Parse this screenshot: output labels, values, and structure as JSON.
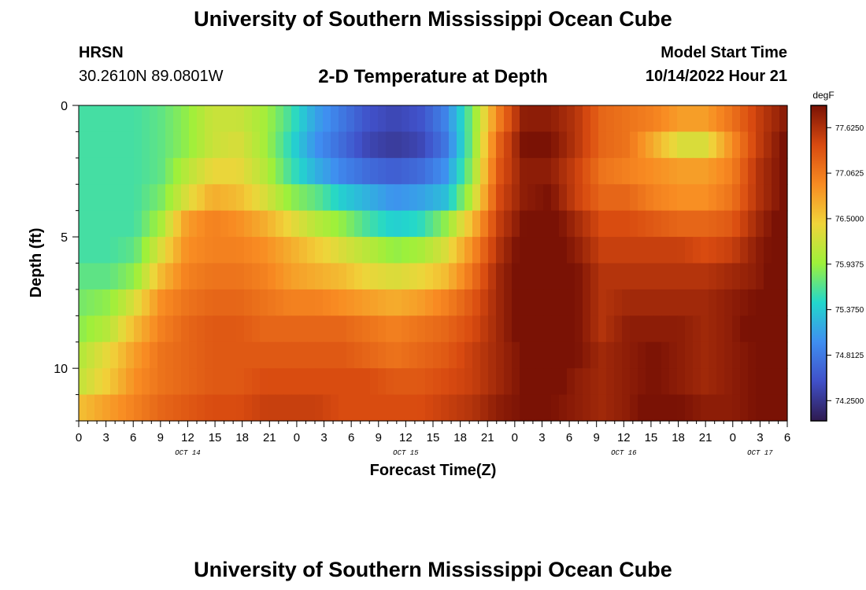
{
  "header": {
    "title": "University of Southern Mississippi Ocean Cube",
    "station": "HRSN",
    "coords": "30.2610N  89.0801W",
    "subtitle": "2-D Temperature at Depth",
    "model_start_label": "Model Start Time",
    "model_start_value": "10/14/2022 Hour 21"
  },
  "footer": {
    "title": "University of Southern Mississippi Ocean Cube"
  },
  "colors": {
    "colormap": [
      "#2e1a4f",
      "#4050c8",
      "#3f8ef0",
      "#22d7cc",
      "#9ef03a",
      "#f0d43a",
      "#f88b22",
      "#d84a10",
      "#7a1205"
    ]
  },
  "chart_data": {
    "type": "heatmap",
    "xlabel": "Forecast Time(Z)",
    "ylabel": "Depth (ft)",
    "x_tick_labels": [
      "0",
      "3",
      "6",
      "9",
      "12",
      "15",
      "18",
      "21",
      "0",
      "3",
      "6",
      "9",
      "12",
      "15",
      "18",
      "21",
      "0",
      "3",
      "6",
      "9",
      "12",
      "15",
      "18",
      "21",
      "0",
      "3",
      "6"
    ],
    "date_labels": [
      {
        "label": "OCT 14",
        "tick_index": 4
      },
      {
        "label": "OCT 15",
        "tick_index": 12
      },
      {
        "label": "OCT 16",
        "tick_index": 20
      },
      {
        "label": "OCT 17",
        "tick_index": 25
      }
    ],
    "x_range_hours": [
      0,
      78
    ],
    "y_ticks": [
      0,
      5,
      10
    ],
    "y_range_ft": [
      0,
      12
    ],
    "colorbar": {
      "units": "degF",
      "ticks": [
        "77.6250",
        "77.0625",
        "76.5000",
        "75.9375",
        "75.3750",
        "74.8125",
        "74.2500"
      ],
      "range": [
        74.0,
        77.9
      ]
    },
    "layers_top_to_bottom": [
      [
        75.6,
        75.6,
        75.6,
        75.7,
        75.9,
        76.2,
        76.2,
        76.0,
        75.6,
        75.1,
        74.8,
        74.5,
        74.4,
        74.5,
        74.9,
        75.8,
        77.0,
        77.8,
        77.8,
        77.6,
        77.2,
        77.1,
        77.0,
        76.8,
        76.8,
        77.1,
        77.5,
        77.8
      ],
      [
        75.6,
        75.6,
        75.6,
        75.7,
        75.9,
        76.2,
        76.3,
        76.0,
        75.5,
        75.0,
        74.7,
        74.4,
        74.3,
        74.4,
        74.8,
        75.8,
        77.2,
        77.9,
        77.9,
        77.6,
        77.2,
        77.1,
        76.7,
        76.3,
        76.3,
        76.9,
        77.5,
        77.9
      ],
      [
        75.6,
        75.6,
        75.6,
        75.7,
        76.1,
        76.4,
        76.4,
        76.1,
        75.6,
        75.2,
        74.9,
        74.7,
        74.6,
        74.7,
        75.0,
        75.9,
        77.3,
        77.8,
        77.8,
        77.5,
        77.1,
        77.0,
        76.9,
        76.8,
        76.8,
        77.0,
        77.6,
        77.9
      ],
      [
        75.6,
        75.6,
        75.6,
        75.8,
        76.3,
        76.7,
        76.6,
        76.3,
        75.9,
        75.7,
        75.4,
        75.2,
        75.0,
        75.1,
        75.3,
        76.1,
        77.4,
        77.8,
        77.9,
        77.5,
        77.2,
        77.2,
        77.0,
        76.9,
        76.9,
        77.1,
        77.6,
        77.9
      ],
      [
        75.6,
        75.6,
        75.6,
        76.0,
        76.8,
        77.0,
        76.9,
        76.7,
        76.4,
        76.1,
        75.9,
        75.6,
        75.4,
        75.5,
        75.9,
        76.6,
        77.5,
        77.9,
        78.0,
        77.7,
        77.4,
        77.4,
        77.3,
        77.2,
        77.2,
        77.3,
        77.7,
        78.0
      ],
      [
        75.6,
        75.6,
        75.7,
        76.3,
        76.9,
        77.0,
        77.0,
        76.9,
        76.7,
        76.5,
        76.3,
        76.1,
        75.9,
        76.0,
        76.3,
        76.9,
        77.6,
        78.0,
        78.0,
        77.8,
        77.5,
        77.5,
        77.5,
        77.5,
        77.4,
        77.5,
        77.8,
        78.0
      ],
      [
        75.7,
        75.7,
        75.9,
        76.6,
        77.0,
        77.1,
        77.1,
        77.0,
        76.8,
        76.7,
        76.6,
        76.4,
        76.3,
        76.4,
        76.6,
        77.1,
        77.7,
        78.0,
        78.3,
        77.9,
        77.6,
        77.6,
        77.6,
        77.6,
        77.6,
        77.7,
        77.8,
        78.1
      ],
      [
        75.8,
        75.9,
        76.3,
        76.9,
        77.1,
        77.2,
        77.2,
        77.1,
        77.0,
        77.0,
        76.9,
        76.8,
        76.7,
        76.8,
        77.0,
        77.3,
        77.7,
        78.0,
        78.4,
        77.9,
        77.6,
        77.7,
        77.7,
        77.7,
        77.7,
        77.8,
        77.9,
        78.1
      ],
      [
        75.9,
        76.1,
        76.6,
        77.0,
        77.2,
        77.3,
        77.3,
        77.2,
        77.2,
        77.2,
        77.2,
        77.1,
        77.0,
        77.1,
        77.2,
        77.4,
        77.7,
        78.0,
        78.1,
        77.9,
        77.6,
        77.8,
        77.8,
        77.8,
        77.7,
        77.8,
        78.0,
        78.1
      ],
      [
        76.1,
        76.4,
        76.8,
        77.1,
        77.2,
        77.3,
        77.3,
        77.3,
        77.3,
        77.3,
        77.3,
        77.2,
        77.1,
        77.2,
        77.3,
        77.5,
        77.7,
        77.9,
        78.0,
        77.9,
        77.7,
        77.8,
        77.9,
        77.8,
        77.7,
        77.8,
        77.9,
        78.0
      ],
      [
        76.2,
        76.5,
        76.9,
        77.1,
        77.2,
        77.3,
        77.3,
        77.4,
        77.4,
        77.4,
        77.4,
        77.4,
        77.3,
        77.3,
        77.4,
        77.5,
        77.7,
        77.9,
        78.0,
        77.8,
        77.7,
        77.8,
        77.9,
        77.8,
        77.7,
        77.8,
        77.9,
        78.0
      ],
      [
        76.6,
        76.8,
        77.0,
        77.2,
        77.3,
        77.4,
        77.4,
        77.5,
        77.5,
        77.5,
        77.4,
        77.4,
        77.4,
        77.4,
        77.5,
        77.6,
        77.8,
        77.9,
        77.9,
        77.8,
        77.7,
        77.8,
        78.0,
        77.9,
        77.8,
        77.8,
        77.9,
        77.9
      ]
    ]
  }
}
